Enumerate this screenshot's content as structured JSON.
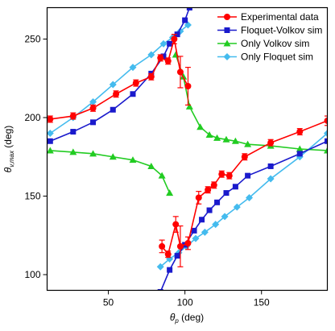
{
  "chart_data": {
    "type": "line",
    "xlabel": "θp (deg)",
    "xlabel_main": "θ",
    "xlabel_sub": "p",
    "xlabel_unit": " (deg)",
    "ylabel": "θv,max (deg)",
    "ylabel_main": "θ",
    "ylabel_sub": "v,max",
    "ylabel_unit": " (deg)",
    "xlim": [
      10,
      193
    ],
    "ylim": [
      90,
      270
    ],
    "xticks": [
      50,
      100,
      150
    ],
    "yticks": [
      100,
      150,
      200,
      250
    ],
    "grid": false,
    "legend_position": "top-right",
    "series": [
      {
        "name": "Experimental data",
        "color": "#ff0000",
        "marker": "circle",
        "segments": [
          {
            "x": [
              12,
              27,
              40,
              55,
              68,
              78,
              84,
              89,
              93,
              97,
              102
            ],
            "y": [
              199,
              201,
              206,
              215,
              222,
              226,
              238,
              236,
              250,
              229,
              220
            ],
            "err": [
              2,
              2,
              2,
              2,
              2,
              2,
              2,
              2,
              3,
              10,
              12
            ]
          },
          {
            "x": [
              85,
              89,
              94,
              97,
              102,
              109,
              115,
              119,
              124,
              129,
              139,
              156,
              175,
              193
            ],
            "y": [
              118,
              113,
              132,
              118,
              120,
              149,
              154,
              157,
              164,
              163,
              175,
              184,
              191,
              198
            ],
            "err": [
              4,
              2,
              5,
              13,
              4,
              4,
              2,
              2,
              2,
              2,
              2,
              2,
              2,
              3
            ]
          }
        ]
      },
      {
        "name": "Floquet-Volkov sim",
        "color": "#1a1acc",
        "marker": "square",
        "segments": [
          {
            "x": [
              12,
              27,
              40,
              53,
              66,
              78,
              86,
              90,
              95,
              100,
              103
            ],
            "y": [
              185,
              191,
              197,
              205,
              215,
              228,
              239,
              247,
              253,
              262,
              270
            ]
          },
          {
            "x": [
              84,
              90,
              95,
              100,
              106,
              111,
              116,
              121,
              127,
              133,
              141,
              156,
              175,
              193
            ],
            "y": [
              89,
              103,
              112,
              119,
              128,
              135,
              141,
              146,
              152,
              156,
              163,
              169,
              177,
              185
            ]
          }
        ]
      },
      {
        "name": "Only Volkov sim",
        "color": "#22cc22",
        "marker": "triangle",
        "segments": [
          {
            "x": [
              12,
              27,
              40,
              53,
              66,
              78,
              85,
              90
            ],
            "y": [
              179,
              178,
              177,
              175,
              173,
              169,
              163,
              152
            ]
          },
          {
            "x": [
              94,
              99,
              103,
              110,
              116,
              121,
              127,
              133,
              141,
              156,
              175,
              193
            ],
            "y": [
              240,
              226,
              207,
              194,
              189,
              187,
              186,
              185,
              183,
              182,
              180,
              179
            ]
          }
        ]
      },
      {
        "name": "Only Floquet sim",
        "color": "#44bbee",
        "marker": "diamond",
        "segments": [
          {
            "x": [
              12,
              27,
              40,
              53,
              66,
              78,
              86,
              92,
              97,
              102
            ],
            "y": [
              190,
              200,
              210,
              221,
              232,
              240,
              247,
              251,
              255,
              259
            ]
          },
          {
            "x": [
              84,
              90,
              96,
              101,
              107,
              113,
              120,
              126,
              134,
              142,
              156,
              175,
              193
            ],
            "y": [
              105,
              110,
              114,
              118,
              123,
              127,
              132,
              137,
              143,
              149,
              161,
              175,
              190
            ]
          }
        ]
      }
    ]
  }
}
